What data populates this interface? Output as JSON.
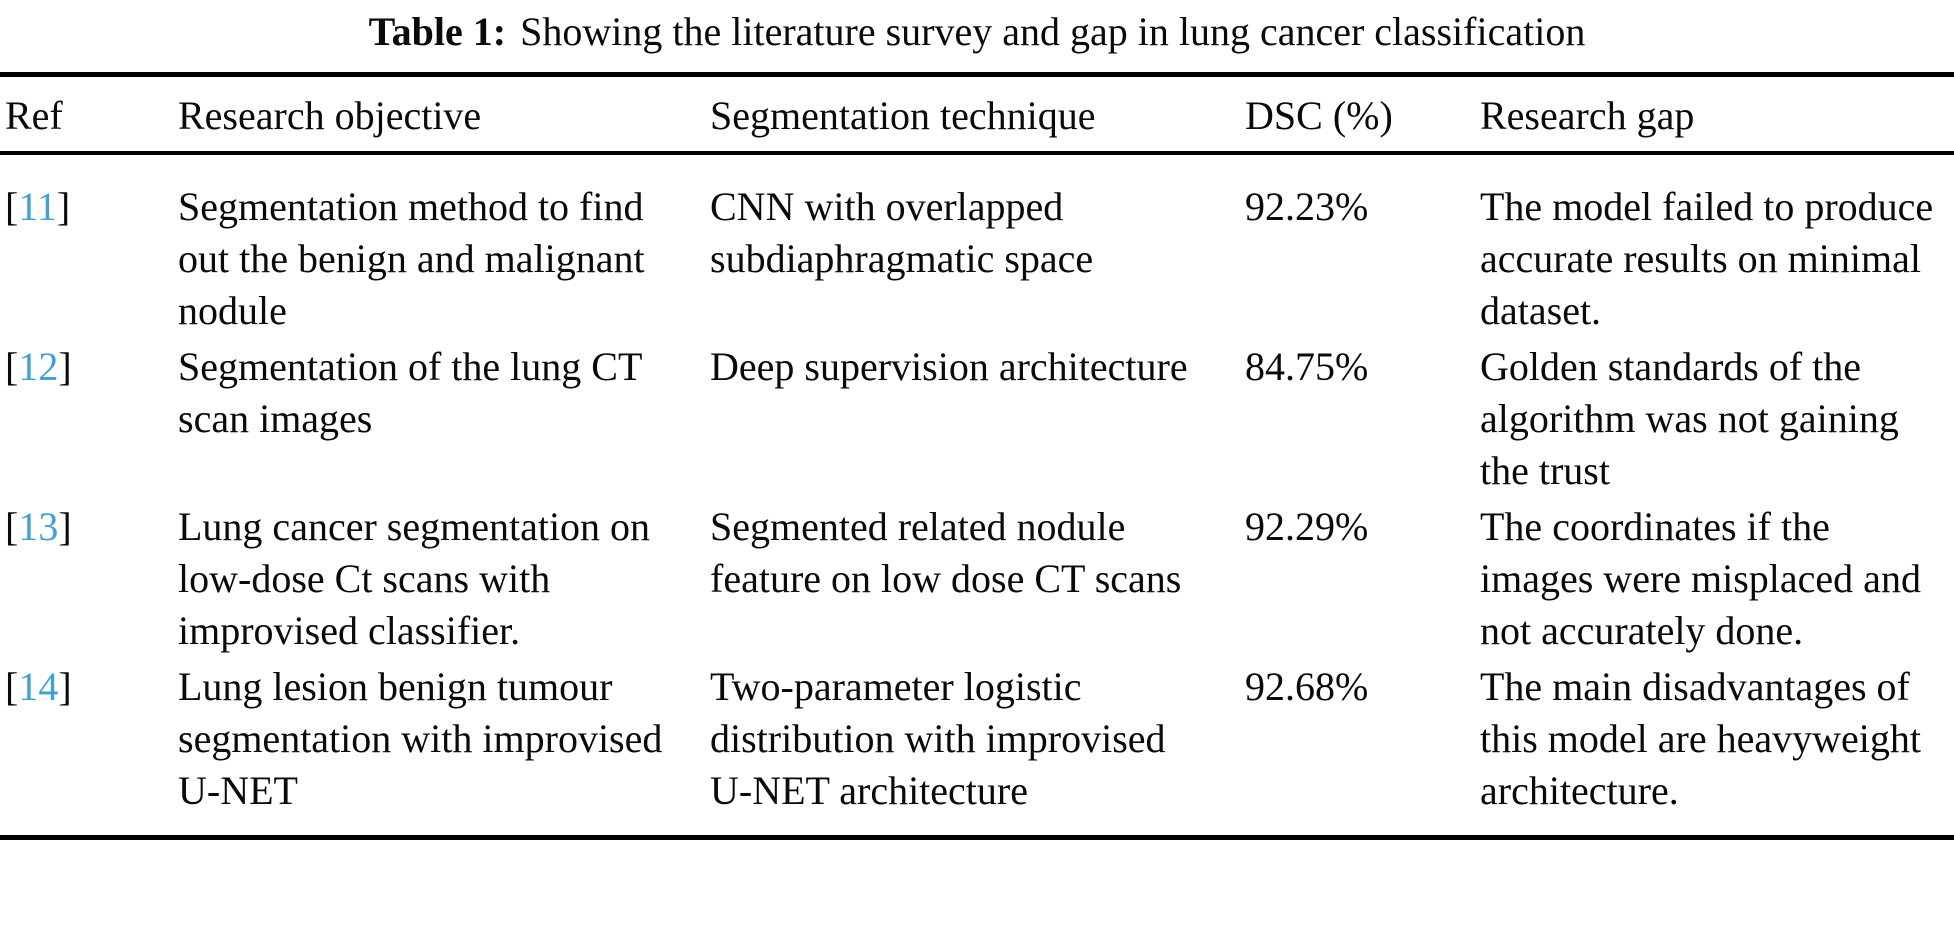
{
  "title": {
    "label": "Table 1:",
    "text": "Showing the literature survey and gap in lung cancer classification"
  },
  "columns": {
    "ref": "Ref",
    "objective": "Research objective",
    "technique": "Segmentation technique",
    "dsc": "DSC (%)",
    "gap": "Research gap"
  },
  "ref_brackets": {
    "open": "[",
    "close": "]"
  },
  "colors": {
    "ref_number": "#41a0d5",
    "text": "#0a0a0a",
    "background": "#ffffff"
  },
  "rows": [
    {
      "ref": "11",
      "objective": "Segmentation method to find out the benign and malignant nodule",
      "technique": "CNN with overlapped subdiaphragmatic space",
      "dsc": "92.23%",
      "gap": "The model failed to produce accurate results on minimal dataset."
    },
    {
      "ref": "12",
      "objective": "Segmentation of the lung CT scan images",
      "technique": "Deep supervision architecture",
      "dsc": "84.75%",
      "gap": "Golden standards of the algorithm was not gaining the trust"
    },
    {
      "ref": "13",
      "objective": "Lung cancer segmentation on low-dose Ct scans with improvised classifier.",
      "technique": "Segmented related nodule feature on low dose CT scans",
      "dsc": "92.29%",
      "gap": "The coordinates if the images were misplaced and not accurately done."
    },
    {
      "ref": "14",
      "objective": "Lung lesion benign tumour segmentation with improvised U-NET",
      "technique": "Two-parameter logistic distribution with improvised U-NET architecture",
      "dsc": "92.68%",
      "gap": "The main disadvantages of this model are heavyweight architecture."
    }
  ]
}
